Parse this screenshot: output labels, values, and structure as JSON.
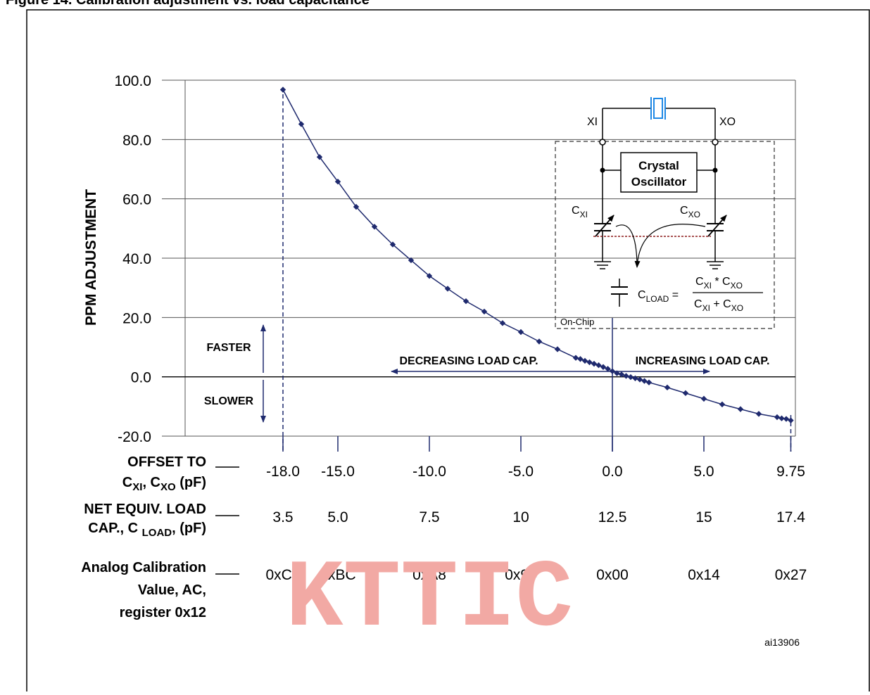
{
  "figure_caption": "Figure 14. Calibration adjustment vs. load capacitance",
  "chart_data": {
    "type": "line",
    "ylabel": "PPM ADJUSTMENT",
    "ylim": [
      -20,
      100
    ],
    "yticks": [
      "100.0",
      "80.0",
      "60.0",
      "40.0",
      "20.0",
      "0.0",
      "-20.0"
    ],
    "xlim": [
      -18,
      9.75
    ],
    "grid": "horizontal",
    "series": [
      {
        "x": [
          -18,
          -17,
          -16,
          -15,
          -14,
          -13,
          -12,
          -11,
          -10,
          -9,
          -8,
          -7,
          -6,
          -5,
          -4,
          -3,
          -2,
          -1.75,
          -1.5,
          -1.25,
          -1,
          -0.75,
          -0.5,
          -0.25,
          0,
          0.25,
          0.5,
          0.75,
          1,
          1.25,
          1.5,
          1.75,
          2,
          3,
          4,
          5,
          6,
          7,
          8,
          9,
          9.25,
          9.5,
          9.75
        ],
        "y": [
          96.8,
          85.2,
          74.1,
          65.8,
          57.3,
          50.6,
          44.6,
          39.3,
          34.0,
          29.7,
          25.5,
          22.0,
          18.1,
          15.1,
          11.9,
          9.3,
          6.4,
          6.0,
          5.4,
          4.9,
          4.4,
          3.9,
          3.3,
          2.7,
          1.9,
          1.2,
          0.8,
          0.3,
          -0.1,
          -0.5,
          -0.9,
          -1.4,
          -1.9,
          -3.6,
          -5.5,
          -7.4,
          -9.3,
          -10.9,
          -12.5,
          -13.6,
          -14.0,
          -14.2,
          -14.7
        ]
      }
    ],
    "x_axis_rows": [
      {
        "label_lines": [
          "OFFSET TO",
          "C",
          "XI",
          ", C",
          "XO",
          " (pF)"
        ],
        "values": [
          "-18.0",
          "-15.0",
          "-10.0",
          "-5.0",
          "0.0",
          "5.0",
          "9.75"
        ]
      },
      {
        "label_lines": [
          "NET EQUIV. LOAD",
          "CAP., C ",
          "LOAD",
          ", (pF)"
        ],
        "values": [
          "3.5",
          "5.0",
          "7.5",
          "10",
          "12.5",
          "15",
          "17.4"
        ]
      },
      {
        "label_lines": [
          "Analog Calibration",
          "Value, AC,",
          "register 0x12"
        ],
        "values": [
          "0xC8",
          "0xBC",
          "0xA8",
          "0x94",
          "0x00",
          "0x14",
          "0x27"
        ]
      }
    ],
    "annotations": {
      "faster": "FASTER",
      "slower": "SLOWER",
      "decreasing": "DECREASING LOAD CAP.",
      "increasing": "INCREASING LOAD CAP."
    }
  },
  "inset": {
    "xi": "XI",
    "xo": "XO",
    "osc_line1": "Crystal",
    "osc_line2": "Oscillator",
    "cxi_main": "C",
    "cxi_sub": "XI",
    "cxo_main": "C",
    "cxo_sub": "XO",
    "on_chip": "On-Chip",
    "cload_main": "C",
    "cload_sub": "LOAD",
    "num_a": "C",
    "num_a_sub": "XI",
    "num_op": " * C",
    "num_b_sub": "XO",
    "den_a": "C",
    "den_a_sub": "XI",
    "den_op": " + C",
    "den_b_sub": "XO"
  },
  "figure_id": "ai13906",
  "watermark": "KTTIC",
  "colors": {
    "series": "#1f2a6e",
    "crystal": "#1e88e5",
    "load_line": "#8b1a1a",
    "watermark": "#f2a9a4"
  }
}
